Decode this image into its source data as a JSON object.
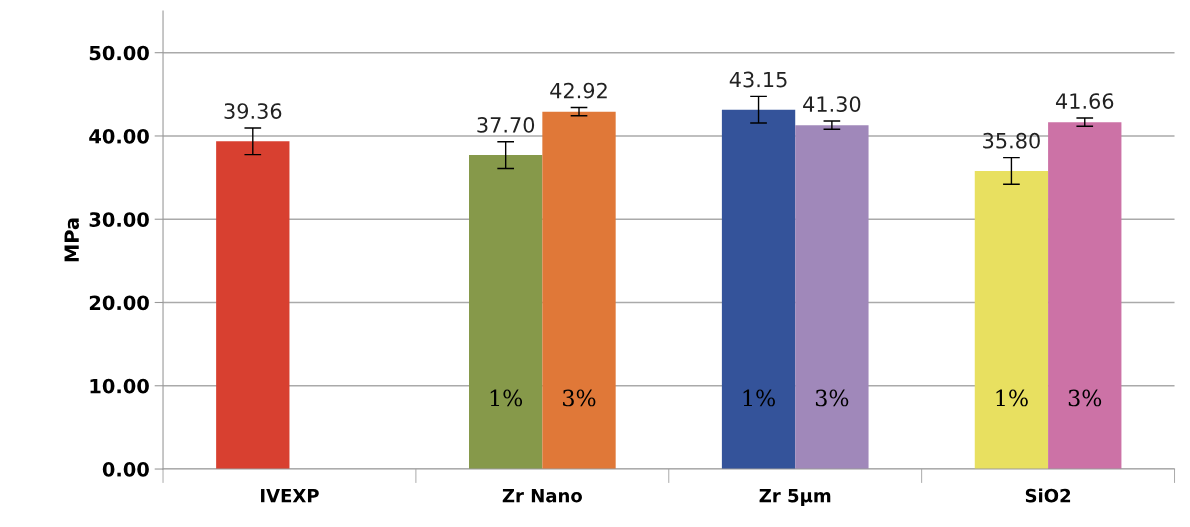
{
  "chart_data": {
    "type": "bar",
    "ylabel": "MPa",
    "categories": [
      "IVEXP",
      "Zr Nano",
      "Zr 5µm",
      "SiO2"
    ],
    "series": [
      {
        "name": "1%",
        "colors": [
          "#d84030",
          "#86994a",
          "#34539a",
          "#e8e060"
        ],
        "values": [
          39.36,
          37.7,
          43.15,
          35.8
        ],
        "errors": [
          1.6,
          1.6,
          1.6,
          1.6
        ],
        "value_labels": [
          "39.36",
          "37.70",
          "43.15",
          "35.80"
        ]
      },
      {
        "name": "3%",
        "colors": [
          null,
          "#e07838",
          "#a088ba",
          "#cc72a6"
        ],
        "values": [
          null,
          42.92,
          41.3,
          41.66
        ],
        "errors": [
          null,
          0.5,
          0.5,
          0.5
        ],
        "value_labels": [
          null,
          "42.92",
          "41.30",
          "41.66"
        ]
      }
    ],
    "ylim": [
      0,
      55
    ],
    "yticks": [
      {
        "value": 0,
        "label": "0.00"
      },
      {
        "value": 10,
        "label": "10.00"
      },
      {
        "value": 20,
        "label": "20.00"
      },
      {
        "value": 30,
        "label": "30.00"
      },
      {
        "value": 40,
        "label": "40.00"
      },
      {
        "value": 50,
        "label": "50.00"
      }
    ],
    "grid": "y",
    "legend": false
  }
}
